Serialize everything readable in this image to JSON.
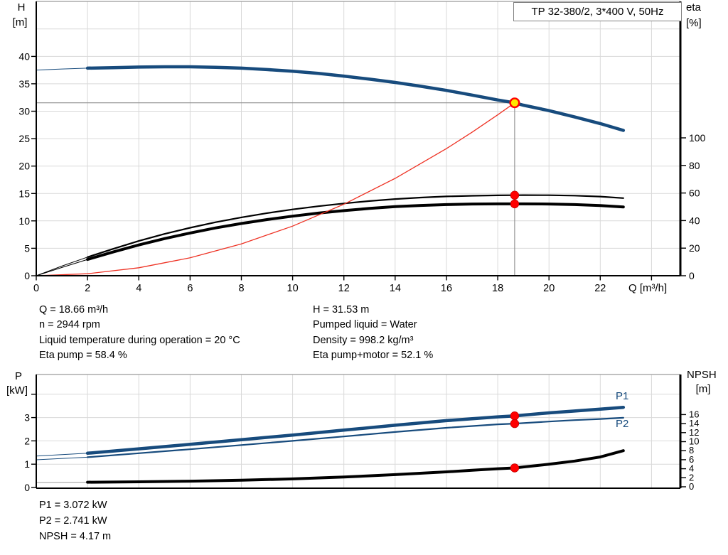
{
  "title_box": "TP 32-380/2, 3*400 V, 50Hz",
  "labels": {
    "h_axis": "H",
    "h_unit": "[m]",
    "eta_axis": "eta",
    "eta_unit": "[%]",
    "q_axis": "Q [m³/h]",
    "p_axis": "P",
    "p_unit": "[kW]",
    "npsh_axis": "NPSH",
    "npsh_unit": "[m]",
    "p1_series": "P1",
    "p2_series": "P2"
  },
  "info_top_left": {
    "l1": "Q = 18.66 m³/h",
    "l2": "n = 2944 rpm",
    "l3": "Liquid temperature during operation = 20 °C",
    "l4": "Eta pump = 58.4 %"
  },
  "info_top_right": {
    "l1": "H = 31.53 m",
    "l2": "Pumped liquid = Water",
    "l3": "Density = 998.2 kg/m³",
    "l4": "Eta pump+motor = 52.1 %"
  },
  "info_bottom": {
    "l1": "P1 = 3.072 kW",
    "l2": "P2 = 2.741 kW",
    "l3": "NPSH = 4.17 m"
  },
  "colors": {
    "curve_blue": "#174b7d",
    "curve_red": "#ee3224",
    "marker_red": "#ff0000",
    "marker_edge": "#c00000",
    "duty_yellow": "#ffe800",
    "grid": "#d9d9d9",
    "frame": "#9a9a9a",
    "guide": "#8c8c8c",
    "axis": "#000000"
  },
  "chart_data": [
    {
      "type": "line",
      "title": "TP 32-380/2, 3*400 V, 50Hz",
      "xlabel": "Q [m³/h]",
      "x_range": [
        0,
        25.1
      ],
      "x_grid": [
        2,
        4,
        6,
        8,
        10,
        12,
        14,
        16,
        18,
        20,
        22,
        24
      ],
      "x_tick_lines": [
        0,
        2,
        4,
        6,
        8,
        10,
        12,
        14,
        16,
        18,
        20,
        22,
        24
      ],
      "x_tick_labels": [
        0,
        2,
        4,
        6,
        8,
        10,
        12,
        14,
        16,
        18,
        20,
        22
      ],
      "left_axis": {
        "key": "H",
        "label": "H [m]",
        "range": [
          0,
          45
        ],
        "ticks": [
          0,
          5,
          10,
          15,
          20,
          25,
          30,
          35,
          40
        ],
        "grid": [
          5,
          10,
          15,
          20,
          25,
          30,
          35,
          40,
          45
        ]
      },
      "right_axis": {
        "key": "eta",
        "label": "eta [%]",
        "range": [
          0,
          110
        ],
        "ticks": [
          0,
          20,
          40,
          60,
          80,
          100
        ]
      },
      "series": [
        {
          "name": "eta-pump-curve",
          "axis": "eta",
          "color_key": "axis",
          "width": 2.2,
          "thin_lead": 2,
          "points": [
            [
              0,
              0
            ],
            [
              1,
              7
            ],
            [
              2,
              13.5
            ],
            [
              3,
              19.5
            ],
            [
              4,
              25.2
            ],
            [
              5,
              30.3
            ],
            [
              6,
              34.8
            ],
            [
              7,
              38.8
            ],
            [
              8,
              42.3
            ],
            [
              9,
              45.4
            ],
            [
              10,
              48.1
            ],
            [
              11,
              50.4
            ],
            [
              12,
              52.4
            ],
            [
              13,
              54.2
            ],
            [
              14,
              55.6
            ],
            [
              15,
              56.7
            ],
            [
              16,
              57.5
            ],
            [
              17,
              58.0
            ],
            [
              18,
              58.3
            ],
            [
              18.66,
              58.4
            ],
            [
              19,
              58.45
            ],
            [
              20,
              58.4
            ],
            [
              21,
              58.1
            ],
            [
              22,
              57.4
            ],
            [
              22.9,
              56.3
            ]
          ]
        },
        {
          "name": "eta-pump-motor-curve",
          "axis": "eta",
          "color_key": "axis",
          "width": 4,
          "thin_lead": 2,
          "points": [
            [
              0,
              0
            ],
            [
              1,
              6
            ],
            [
              2,
              11.8
            ],
            [
              3,
              17.2
            ],
            [
              4,
              22.3
            ],
            [
              5,
              26.9
            ],
            [
              6,
              31.0
            ],
            [
              7,
              34.7
            ],
            [
              8,
              37.9
            ],
            [
              9,
              40.7
            ],
            [
              10,
              43.2
            ],
            [
              11,
              45.4
            ],
            [
              12,
              47.2
            ],
            [
              13,
              48.8
            ],
            [
              14,
              50.1
            ],
            [
              15,
              51.0
            ],
            [
              16,
              51.6
            ],
            [
              17,
              52.0
            ],
            [
              18,
              52.1
            ],
            [
              18.66,
              52.1
            ],
            [
              19,
              52.1
            ],
            [
              20,
              52.0
            ],
            [
              21,
              51.6
            ],
            [
              22,
              50.9
            ],
            [
              22.9,
              49.9
            ]
          ]
        },
        {
          "name": "system-curve",
          "axis": "H",
          "color_key": "curve_red",
          "width": 1.3,
          "thin_lead": 0,
          "points": [
            [
              0,
              0
            ],
            [
              2,
              0.36
            ],
            [
              4,
              1.45
            ],
            [
              6,
              3.26
            ],
            [
              8,
              5.8
            ],
            [
              10,
              9.05
            ],
            [
              12,
              13.04
            ],
            [
              14,
              17.75
            ],
            [
              16,
              23.18
            ],
            [
              17,
              26.17
            ],
            [
              18,
              29.34
            ],
            [
              18.66,
              31.53
            ]
          ]
        },
        {
          "name": "head-curve",
          "axis": "H",
          "color_key": "curve_blue",
          "width": 4.5,
          "thin_lead": 2,
          "points": [
            [
              0,
              37.5
            ],
            [
              1,
              37.7
            ],
            [
              2,
              37.85
            ],
            [
              3,
              37.95
            ],
            [
              4,
              38.05
            ],
            [
              5,
              38.1
            ],
            [
              6,
              38.1
            ],
            [
              7,
              38.0
            ],
            [
              8,
              37.85
            ],
            [
              9,
              37.6
            ],
            [
              10,
              37.3
            ],
            [
              11,
              36.9
            ],
            [
              12,
              36.4
            ],
            [
              13,
              35.85
            ],
            [
              14,
              35.25
            ],
            [
              15,
              34.55
            ],
            [
              16,
              33.8
            ],
            [
              17,
              32.95
            ],
            [
              18,
              32.05
            ],
            [
              18.66,
              31.53
            ],
            [
              19,
              31.1
            ],
            [
              20,
              30.1
            ],
            [
              21,
              28.95
            ],
            [
              22,
              27.75
            ],
            [
              22.9,
              26.5
            ]
          ]
        }
      ],
      "guides": {
        "duty_q": 18.66,
        "duty_h": 31.53
      },
      "duty_point": {
        "q": 18.66,
        "h": 31.53
      },
      "markers": [
        {
          "q": 18.66,
          "axis": "eta",
          "v": 58.4,
          "name": "eta-pump-marker"
        },
        {
          "q": 18.66,
          "axis": "eta",
          "v": 52.1,
          "name": "eta-pump-motor-marker"
        }
      ]
    },
    {
      "type": "line",
      "title": "Power and NPSH curves",
      "xlabel": "Q [m³/h]",
      "x_range": [
        0,
        25.1
      ],
      "x_grid": [
        2,
        4,
        6,
        8,
        10,
        12,
        14,
        16,
        18,
        20,
        22,
        24
      ],
      "x_tick_lines": [],
      "x_tick_labels": [],
      "left_axis": {
        "key": "P",
        "label": "P [kW]",
        "range": [
          0,
          4.8
        ],
        "ticks": [
          0,
          1,
          2,
          3
        ],
        "tick_lines_extra": [
          4
        ],
        "grid": [
          1,
          2,
          3,
          4
        ]
      },
      "right_axis": {
        "key": "NPSH",
        "label": "NPSH [m]",
        "range": [
          0,
          16
        ],
        "ticks": [
          0,
          2,
          4,
          6,
          8,
          10,
          12,
          14,
          16
        ]
      },
      "series": [
        {
          "name": "npsh-curve",
          "axis": "NPSH",
          "color_key": "axis",
          "width": 4,
          "thin_lead": 2,
          "thin_color": "#9a9a9a",
          "points": [
            [
              0,
              0.95
            ],
            [
              2,
              1.0
            ],
            [
              4,
              1.1
            ],
            [
              6,
              1.25
            ],
            [
              8,
              1.45
            ],
            [
              10,
              1.75
            ],
            [
              12,
              2.15
            ],
            [
              14,
              2.7
            ],
            [
              16,
              3.3
            ],
            [
              17,
              3.65
            ],
            [
              18,
              4.0
            ],
            [
              18.66,
              4.17
            ],
            [
              19,
              4.4
            ],
            [
              20,
              5.0
            ],
            [
              21,
              5.7
            ],
            [
              22,
              6.6
            ],
            [
              22.9,
              8.0
            ]
          ]
        },
        {
          "name": "p2-curve",
          "axis": "P",
          "color_key": "curve_blue",
          "width": 2.2,
          "thin_lead": 2,
          "points": [
            [
              0,
              1.19
            ],
            [
              2,
              1.3
            ],
            [
              4,
              1.47
            ],
            [
              6,
              1.64
            ],
            [
              8,
              1.82
            ],
            [
              10,
              2.0
            ],
            [
              12,
              2.19
            ],
            [
              14,
              2.38
            ],
            [
              16,
              2.56
            ],
            [
              18,
              2.71
            ],
            [
              18.66,
              2.741
            ],
            [
              20,
              2.83
            ],
            [
              21,
              2.89
            ],
            [
              22,
              2.94
            ],
            [
              22.9,
              2.99
            ]
          ]
        },
        {
          "name": "p1-curve",
          "axis": "P",
          "color_key": "curve_blue",
          "width": 4.5,
          "thin_lead": 2,
          "points": [
            [
              0,
              1.35
            ],
            [
              2,
              1.47
            ],
            [
              4,
              1.66
            ],
            [
              6,
              1.85
            ],
            [
              8,
              2.05
            ],
            [
              10,
              2.25
            ],
            [
              12,
              2.46
            ],
            [
              14,
              2.67
            ],
            [
              16,
              2.87
            ],
            [
              18,
              3.03
            ],
            [
              18.66,
              3.072
            ],
            [
              20,
              3.2
            ],
            [
              21,
              3.28
            ],
            [
              22,
              3.36
            ],
            [
              22.9,
              3.44
            ]
          ]
        }
      ],
      "markers": [
        {
          "q": 18.66,
          "axis": "P",
          "v": 3.072,
          "name": "p1-marker"
        },
        {
          "q": 18.66,
          "axis": "P",
          "v": 2.741,
          "name": "p2-marker"
        },
        {
          "q": 18.66,
          "axis": "NPSH",
          "v": 4.17,
          "name": "npsh-marker"
        }
      ],
      "operating_point_values": {
        "P1_kW": 3.072,
        "P2_kW": 2.741,
        "NPSH_m": 4.17
      }
    }
  ]
}
